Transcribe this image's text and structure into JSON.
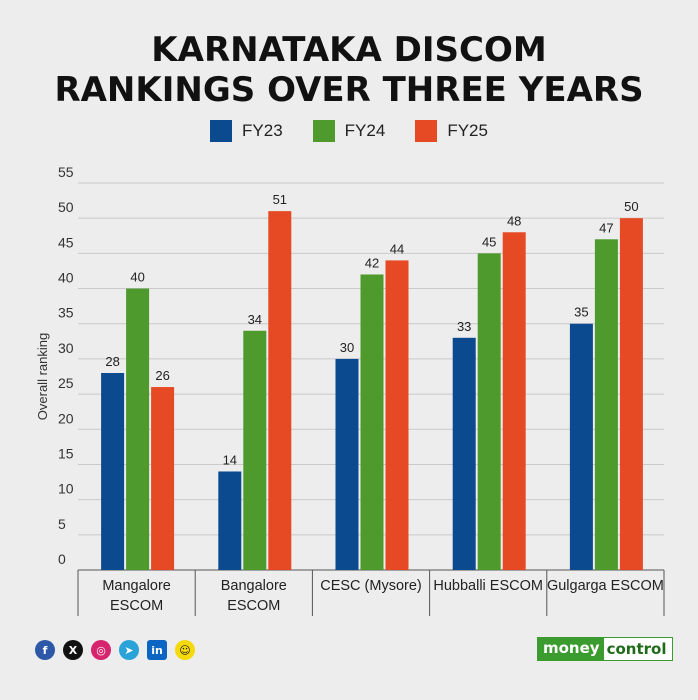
{
  "chart_data": {
    "type": "bar",
    "title_line1": "KARNATAKA DISCOM",
    "title_line2": "RANKINGS OVER THREE YEARS",
    "ylabel": "Overall ranking",
    "ylim": [
      0,
      55
    ],
    "yticks": [
      "0",
      "5",
      "10",
      "15",
      "20",
      "25",
      "30",
      "35",
      "40",
      "45",
      "50",
      "55"
    ],
    "grid": true,
    "legend_position": "top-center",
    "categories": [
      [
        "Mangalore",
        "ESCOM"
      ],
      [
        "Bangalore",
        "ESCOM"
      ],
      [
        "CESC (Mysore)"
      ],
      [
        "Hubballi ESCOM"
      ],
      [
        "Gulgarga ESCOM"
      ]
    ],
    "series": [
      {
        "name": "FY23",
        "color": "#0c4a8f",
        "values": [
          28,
          14,
          30,
          33,
          35
        ]
      },
      {
        "name": "FY24",
        "color": "#4e9a2c",
        "values": [
          40,
          34,
          42,
          45,
          47
        ]
      },
      {
        "name": "FY25",
        "color": "#e64a24",
        "values": [
          26,
          51,
          44,
          48,
          50
        ]
      }
    ]
  },
  "footer": {
    "social_icons": [
      "facebook-icon",
      "x-icon",
      "instagram-icon",
      "telegram-icon",
      "linkedin-icon",
      "snapchat-icon"
    ],
    "brand_part1": "money",
    "brand_part2": "control"
  }
}
